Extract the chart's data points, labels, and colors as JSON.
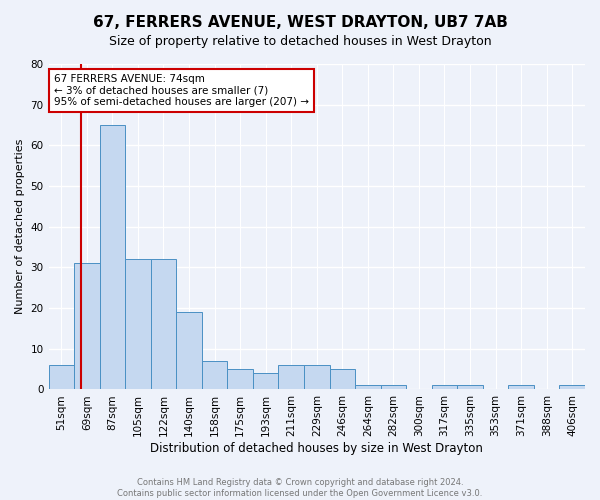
{
  "title": "67, FERRERS AVENUE, WEST DRAYTON, UB7 7AB",
  "subtitle": "Size of property relative to detached houses in West Drayton",
  "xlabel": "Distribution of detached houses by size in West Drayton",
  "ylabel": "Number of detached properties",
  "footnote1": "Contains HM Land Registry data © Crown copyright and database right 2024.",
  "footnote2": "Contains public sector information licensed under the Open Government Licence v3.0.",
  "categories": [
    "51sqm",
    "69sqm",
    "87sqm",
    "105sqm",
    "122sqm",
    "140sqm",
    "158sqm",
    "175sqm",
    "193sqm",
    "211sqm",
    "229sqm",
    "246sqm",
    "264sqm",
    "282sqm",
    "300sqm",
    "317sqm",
    "335sqm",
    "353sqm",
    "371sqm",
    "388sqm",
    "406sqm"
  ],
  "values": [
    6,
    31,
    65,
    32,
    32,
    19,
    7,
    5,
    4,
    6,
    6,
    5,
    1,
    1,
    0,
    1,
    1,
    0,
    1,
    0,
    1
  ],
  "bar_color": "#c5d8f0",
  "bar_edge_color": "#4a90c4",
  "vline_color": "#cc0000",
  "annotation_text": "67 FERRERS AVENUE: 74sqm\n← 3% of detached houses are smaller (7)\n95% of semi-detached houses are larger (207) →",
  "annotation_box_color": "#ffffff",
  "annotation_box_edge": "#cc0000",
  "ylim": [
    0,
    80
  ],
  "yticks": [
    0,
    10,
    20,
    30,
    40,
    50,
    60,
    70,
    80
  ],
  "background_color": "#eef2fa",
  "grid_color": "#ffffff",
  "title_fontsize": 11,
  "subtitle_fontsize": 9,
  "xlabel_fontsize": 8.5,
  "ylabel_fontsize": 8,
  "tick_fontsize": 7.5,
  "annotation_fontsize": 7.5,
  "footnote_fontsize": 6,
  "footnote_color": "#777777"
}
